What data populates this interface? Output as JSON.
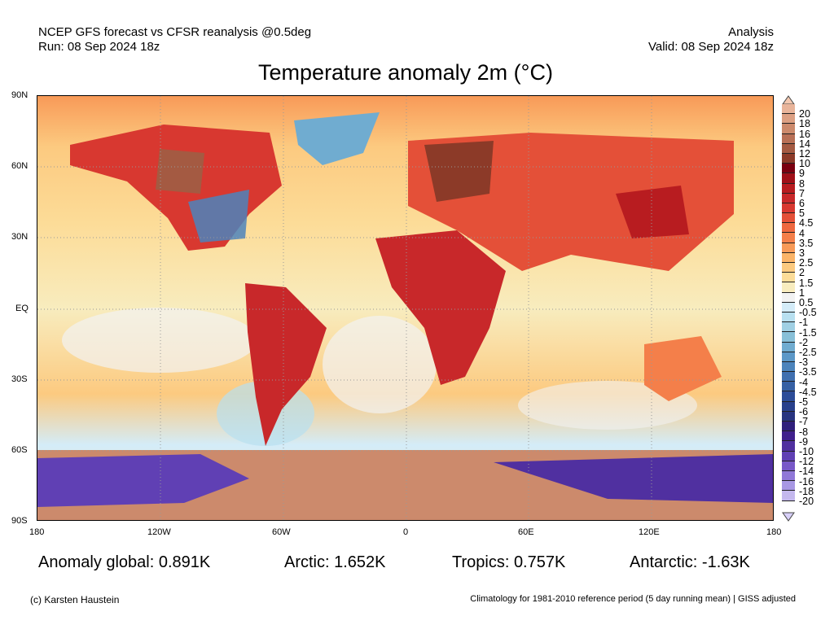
{
  "header": {
    "line1": "NCEP GFS forecast vs CFSR reanalysis @0.5deg",
    "line2": "Run: 08 Sep 2024 18z",
    "right1": "Analysis",
    "right2": "Valid: 08 Sep 2024 18z"
  },
  "title": "Temperature anomaly 2m (°C)",
  "lat_labels": [
    "90N",
    "60N",
    "30N",
    "EQ",
    "30S",
    "60S",
    "90S"
  ],
  "lon_labels": [
    "180",
    "120W",
    "60W",
    "0",
    "60E",
    "120E",
    "180"
  ],
  "stats": {
    "global": "Anomaly global: 0.891K",
    "arctic": "Arctic: 1.652K",
    "tropics": "Tropics: 0.757K",
    "antarctic": "Antarctic: -1.63K"
  },
  "footer": {
    "left": "(c) Karsten Haustein",
    "right": "Climatology for 1981-2010 reference period (5 day running mean) | GISS adjusted"
  },
  "colorbar": {
    "labels": [
      "20",
      "18",
      "16",
      "14",
      "12",
      "10",
      "9",
      "8",
      "7",
      "6",
      "5",
      "4.5",
      "4",
      "3.5",
      "3",
      "2.5",
      "2",
      "1.5",
      "1",
      "0.5",
      "-0.5",
      "-1",
      "-1.5",
      "-2",
      "-2.5",
      "-3",
      "-3.5",
      "-4",
      "-4.5",
      "-5",
      "-6",
      "-7",
      "-8",
      "-9",
      "-10",
      "-12",
      "-14",
      "-16",
      "-18",
      "-20"
    ],
    "colors": [
      "#e8b49a",
      "#dca083",
      "#cc8a6c",
      "#b87056",
      "#a45a42",
      "#8c3a28",
      "#7a0010",
      "#a01018",
      "#b81c20",
      "#c8282a",
      "#d83830",
      "#e45038",
      "#ee6840",
      "#f47f4a",
      "#f89a58",
      "#fbb468",
      "#fcca80",
      "#fcdc98",
      "#f8ecbe",
      "#f2f2f2",
      "#d4ecf8",
      "#b8e0f0",
      "#a0d0e4",
      "#88c0d8",
      "#70acd0",
      "#5c98c8",
      "#4c84bc",
      "#4070b0",
      "#3660a4",
      "#2c4c98",
      "#28408c",
      "#283480",
      "#30207c",
      "#40208c",
      "#5030a0",
      "#6040b4",
      "#7858c8",
      "#9078d8",
      "#a898e4",
      "#c4b8ee"
    ],
    "top_color": "#f4c8b0",
    "bottom_color": "#d8d0f8"
  }
}
